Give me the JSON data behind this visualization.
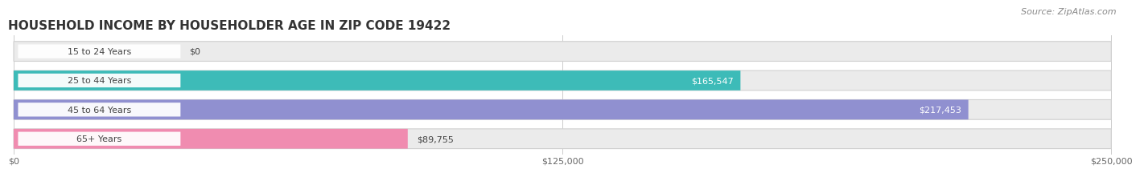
{
  "title": "HOUSEHOLD INCOME BY HOUSEHOLDER AGE IN ZIP CODE 19422",
  "source": "Source: ZipAtlas.com",
  "categories": [
    "15 to 24 Years",
    "25 to 44 Years",
    "45 to 64 Years",
    "65+ Years"
  ],
  "values": [
    0,
    165547,
    217453,
    89755
  ],
  "bar_colors": [
    "#c9a8d4",
    "#3dbbb8",
    "#9090d0",
    "#f08cb0"
  ],
  "bar_bg_color": "#ebebeb",
  "bar_border_color": "#d8d8d8",
  "xlim": [
    0,
    250000
  ],
  "xticks": [
    0,
    125000,
    250000
  ],
  "xtick_labels": [
    "$0",
    "$125,000",
    "$250,000"
  ],
  "title_fontsize": 11,
  "source_fontsize": 8,
  "bar_height": 0.68,
  "fig_width": 14.06,
  "fig_height": 2.33,
  "background_color": "#ffffff",
  "label_fontsize": 8,
  "value_fontsize": 8
}
